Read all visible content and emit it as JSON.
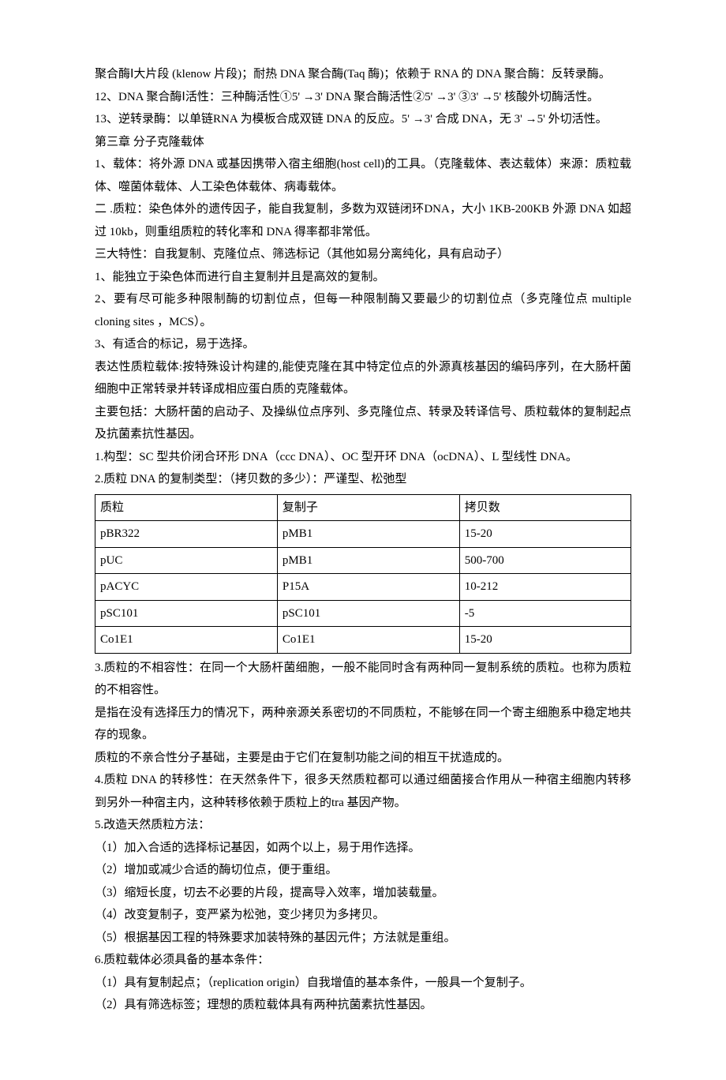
{
  "paragraphs_pre": [
    "聚合酶Ⅰ大片段 (klenow 片段)；耐热 DNA 聚合酶(Taq 酶)；依赖于 RNA 的 DNA 聚合酶：反转录酶。",
    "12、DNA 聚合酶Ⅰ活性：三种酶活性①5' →3' DNA 聚合酶活性②5' →3' ③3' →5' 核酸外切酶活性。",
    "13、逆转录酶：以单链RNA 为模板合成双链 DNA 的反应。5' →3' 合成 DNA，无 3' →5' 外切活性。",
    "第三章 分子克隆载体",
    "1、载体：将外源 DNA 或基因携带入宿主细胞(host cell)的工具。（克隆载体、表达载体）来源：质粒载体、噬菌体载体、人工染色体载体、病毒载体。",
    "二 .质粒：染色体外的遗传因子，能自我复制，多数为双链闭环DNA，大小 1KB-200KB 外源 DNA 如超过 10kb，则重组质粒的转化率和 DNA 得率都非常低。",
    "三大特性：自我复制、克隆位点、筛选标记（其他如易分离纯化，具有启动子）",
    "1、能独立于染色体而进行自主复制并且是高效的复制。",
    "2、要有尽可能多种限制酶的切割位点，但每一种限制酶又要最少的切割位点（多克隆位点 multiple cloning sites ，MCS）。",
    "3、有适合的标记，易于选择。",
    "表达性质粒载体:按特殊设计构建的,能使克隆在其中特定位点的外源真核基因的编码序列，在大肠杆菌细胞中正常转录并转译成相应蛋白质的克隆载体。",
    "主要包括：大肠杆菌的启动子、及操纵位点序列、多克隆位点、转录及转译信号、质粒载体的复制起点及抗菌素抗性基因。",
    "1.构型：SC 型共价闭合环形 DNA（ccc DNA）、OC 型开环 DNA（ocDNA）、L 型线性 DNA。",
    "2.质粒 DNA 的复制类型：（拷贝数的多少）：严谨型、松弛型"
  ],
  "table": {
    "columns": [
      "质粒",
      "复制子",
      "拷贝数"
    ],
    "rows": [
      [
        "pBR322",
        "pMB1",
        "15-20"
      ],
      [
        "pUC",
        "pMB1",
        "500-700"
      ],
      [
        "pACYC",
        "P15A",
        "10-212"
      ],
      [
        "pSC101",
        "pSC101",
        "-5"
      ],
      [
        "Co1E1",
        "Co1E1",
        "15-20"
      ]
    ],
    "border_color": "#000000",
    "background_color": "#ffffff",
    "font_size": 15
  },
  "paragraphs_post": [
    "3.质粒的不相容性：在同一个大肠杆菌细胞，一般不能同时含有两种同一复制系统的质粒。也称为质粒的不相容性。",
    "是指在没有选择压力的情况下，两种亲源关系密切的不同质粒，不能够在同一个寄主细胞系中稳定地共存的现象。",
    "质粒的不亲合性分子基础，主要是由于它们在复制功能之间的相互干扰造成的。",
    "4.质粒 DNA 的转移性：在天然条件下，很多天然质粒都可以通过细菌接合作用从一种宿主细胞内转移到另外一种宿主内，这种转移依赖于质粒上的tra 基因产物。",
    "5.改造天然质粒方法：",
    "（1）加入合适的选择标记基因，如两个以上，易于用作选择。",
    "（2）增加或减少合适的酶切位点，便于重组。",
    "（3）缩短长度，切去不必要的片段，提高导入效率，增加装载量。",
    "（4）改变复制子，变严紧为松弛，变少拷贝为多拷贝。",
    "（5）根据基因工程的特殊要求加装特殊的基因元件；方法就是重组。",
    "6.质粒载体必须具备的基本条件：",
    "（1）具有复制起点；（replication origin）自我增值的基本条件，一般具一个复制子。",
    "（2）具有筛选标签；理想的质粒载体具有两种抗菌素抗性基因。"
  ]
}
